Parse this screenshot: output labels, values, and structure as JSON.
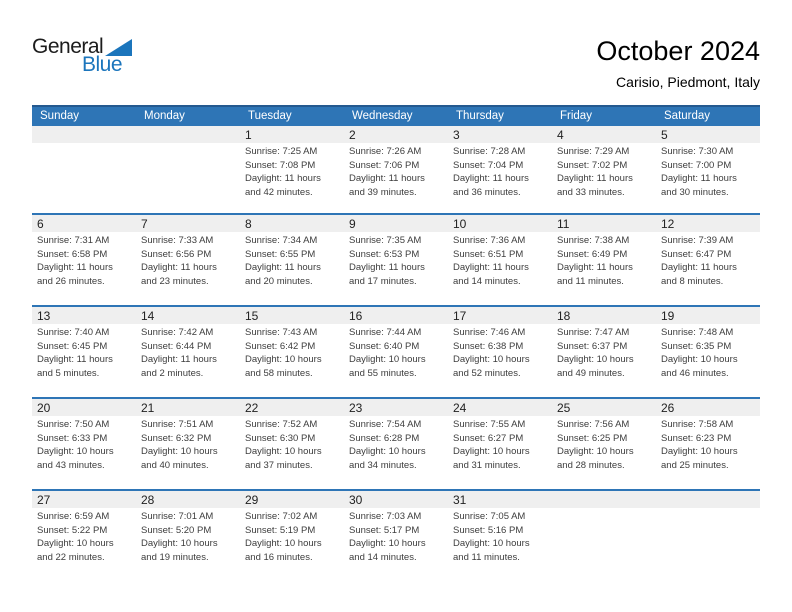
{
  "logo": {
    "text_black": "General",
    "text_blue": "Blue"
  },
  "title": "October 2024",
  "subtitle": "Carisio, Piedmont, Italy",
  "weekdays": [
    "Sunday",
    "Monday",
    "Tuesday",
    "Wednesday",
    "Thursday",
    "Friday",
    "Saturday"
  ],
  "colors": {
    "header_blue": "#2e75b6",
    "header_top_border": "#24598f",
    "row_border_blue": "#2e75b6",
    "band_gray": "#efefef",
    "logo_blue": "#1b75bc"
  },
  "weeks": [
    [
      null,
      null,
      {
        "num": "1",
        "sunrise": "Sunrise: 7:25 AM",
        "sunset": "Sunset: 7:08 PM",
        "daylight1": "Daylight: 11 hours",
        "daylight2": "and 42 minutes."
      },
      {
        "num": "2",
        "sunrise": "Sunrise: 7:26 AM",
        "sunset": "Sunset: 7:06 PM",
        "daylight1": "Daylight: 11 hours",
        "daylight2": "and 39 minutes."
      },
      {
        "num": "3",
        "sunrise": "Sunrise: 7:28 AM",
        "sunset": "Sunset: 7:04 PM",
        "daylight1": "Daylight: 11 hours",
        "daylight2": "and 36 minutes."
      },
      {
        "num": "4",
        "sunrise": "Sunrise: 7:29 AM",
        "sunset": "Sunset: 7:02 PM",
        "daylight1": "Daylight: 11 hours",
        "daylight2": "and 33 minutes."
      },
      {
        "num": "5",
        "sunrise": "Sunrise: 7:30 AM",
        "sunset": "Sunset: 7:00 PM",
        "daylight1": "Daylight: 11 hours",
        "daylight2": "and 30 minutes."
      }
    ],
    [
      {
        "num": "6",
        "sunrise": "Sunrise: 7:31 AM",
        "sunset": "Sunset: 6:58 PM",
        "daylight1": "Daylight: 11 hours",
        "daylight2": "and 26 minutes."
      },
      {
        "num": "7",
        "sunrise": "Sunrise: 7:33 AM",
        "sunset": "Sunset: 6:56 PM",
        "daylight1": "Daylight: 11 hours",
        "daylight2": "and 23 minutes."
      },
      {
        "num": "8",
        "sunrise": "Sunrise: 7:34 AM",
        "sunset": "Sunset: 6:55 PM",
        "daylight1": "Daylight: 11 hours",
        "daylight2": "and 20 minutes."
      },
      {
        "num": "9",
        "sunrise": "Sunrise: 7:35 AM",
        "sunset": "Sunset: 6:53 PM",
        "daylight1": "Daylight: 11 hours",
        "daylight2": "and 17 minutes."
      },
      {
        "num": "10",
        "sunrise": "Sunrise: 7:36 AM",
        "sunset": "Sunset: 6:51 PM",
        "daylight1": "Daylight: 11 hours",
        "daylight2": "and 14 minutes."
      },
      {
        "num": "11",
        "sunrise": "Sunrise: 7:38 AM",
        "sunset": "Sunset: 6:49 PM",
        "daylight1": "Daylight: 11 hours",
        "daylight2": "and 11 minutes."
      },
      {
        "num": "12",
        "sunrise": "Sunrise: 7:39 AM",
        "sunset": "Sunset: 6:47 PM",
        "daylight1": "Daylight: 11 hours",
        "daylight2": "and 8 minutes."
      }
    ],
    [
      {
        "num": "13",
        "sunrise": "Sunrise: 7:40 AM",
        "sunset": "Sunset: 6:45 PM",
        "daylight1": "Daylight: 11 hours",
        "daylight2": "and 5 minutes."
      },
      {
        "num": "14",
        "sunrise": "Sunrise: 7:42 AM",
        "sunset": "Sunset: 6:44 PM",
        "daylight1": "Daylight: 11 hours",
        "daylight2": "and 2 minutes."
      },
      {
        "num": "15",
        "sunrise": "Sunrise: 7:43 AM",
        "sunset": "Sunset: 6:42 PM",
        "daylight1": "Daylight: 10 hours",
        "daylight2": "and 58 minutes."
      },
      {
        "num": "16",
        "sunrise": "Sunrise: 7:44 AM",
        "sunset": "Sunset: 6:40 PM",
        "daylight1": "Daylight: 10 hours",
        "daylight2": "and 55 minutes."
      },
      {
        "num": "17",
        "sunrise": "Sunrise: 7:46 AM",
        "sunset": "Sunset: 6:38 PM",
        "daylight1": "Daylight: 10 hours",
        "daylight2": "and 52 minutes."
      },
      {
        "num": "18",
        "sunrise": "Sunrise: 7:47 AM",
        "sunset": "Sunset: 6:37 PM",
        "daylight1": "Daylight: 10 hours",
        "daylight2": "and 49 minutes."
      },
      {
        "num": "19",
        "sunrise": "Sunrise: 7:48 AM",
        "sunset": "Sunset: 6:35 PM",
        "daylight1": "Daylight: 10 hours",
        "daylight2": "and 46 minutes."
      }
    ],
    [
      {
        "num": "20",
        "sunrise": "Sunrise: 7:50 AM",
        "sunset": "Sunset: 6:33 PM",
        "daylight1": "Daylight: 10 hours",
        "daylight2": "and 43 minutes."
      },
      {
        "num": "21",
        "sunrise": "Sunrise: 7:51 AM",
        "sunset": "Sunset: 6:32 PM",
        "daylight1": "Daylight: 10 hours",
        "daylight2": "and 40 minutes."
      },
      {
        "num": "22",
        "sunrise": "Sunrise: 7:52 AM",
        "sunset": "Sunset: 6:30 PM",
        "daylight1": "Daylight: 10 hours",
        "daylight2": "and 37 minutes."
      },
      {
        "num": "23",
        "sunrise": "Sunrise: 7:54 AM",
        "sunset": "Sunset: 6:28 PM",
        "daylight1": "Daylight: 10 hours",
        "daylight2": "and 34 minutes."
      },
      {
        "num": "24",
        "sunrise": "Sunrise: 7:55 AM",
        "sunset": "Sunset: 6:27 PM",
        "daylight1": "Daylight: 10 hours",
        "daylight2": "and 31 minutes."
      },
      {
        "num": "25",
        "sunrise": "Sunrise: 7:56 AM",
        "sunset": "Sunset: 6:25 PM",
        "daylight1": "Daylight: 10 hours",
        "daylight2": "and 28 minutes."
      },
      {
        "num": "26",
        "sunrise": "Sunrise: 7:58 AM",
        "sunset": "Sunset: 6:23 PM",
        "daylight1": "Daylight: 10 hours",
        "daylight2": "and 25 minutes."
      }
    ],
    [
      {
        "num": "27",
        "sunrise": "Sunrise: 6:59 AM",
        "sunset": "Sunset: 5:22 PM",
        "daylight1": "Daylight: 10 hours",
        "daylight2": "and 22 minutes."
      },
      {
        "num": "28",
        "sunrise": "Sunrise: 7:01 AM",
        "sunset": "Sunset: 5:20 PM",
        "daylight1": "Daylight: 10 hours",
        "daylight2": "and 19 minutes."
      },
      {
        "num": "29",
        "sunrise": "Sunrise: 7:02 AM",
        "sunset": "Sunset: 5:19 PM",
        "daylight1": "Daylight: 10 hours",
        "daylight2": "and 16 minutes."
      },
      {
        "num": "30",
        "sunrise": "Sunrise: 7:03 AM",
        "sunset": "Sunset: 5:17 PM",
        "daylight1": "Daylight: 10 hours",
        "daylight2": "and 14 minutes."
      },
      {
        "num": "31",
        "sunrise": "Sunrise: 7:05 AM",
        "sunset": "Sunset: 5:16 PM",
        "daylight1": "Daylight: 10 hours",
        "daylight2": "and 11 minutes."
      },
      null,
      null
    ]
  ]
}
